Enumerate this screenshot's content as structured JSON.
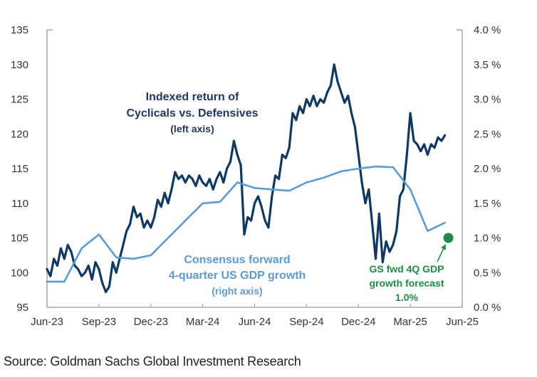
{
  "source": "Source: Goldman Sachs Global Investment Research",
  "colors": {
    "cyclicals": "#0f3864",
    "gdp": "#5b9bd5",
    "forecast": "#1e8c45",
    "axis": "#a6a6a6",
    "tick_text": "#333333"
  },
  "chart_data": {
    "type": "line",
    "title": "",
    "x_unit": "months since Jun-23",
    "x_tick_labels": [
      "Jun-23",
      "Sep-23",
      "Dec-23",
      "Mar-24",
      "Jun-24",
      "Sep-24",
      "Dec-24",
      "Mar-25",
      "Jun-25"
    ],
    "xlim": [
      0,
      24
    ],
    "y_left": {
      "ticks": [
        95,
        100,
        105,
        110,
        115,
        120,
        125,
        130,
        135
      ],
      "tick_labels": [
        "95",
        "100",
        "105",
        "110",
        "115",
        "120",
        "125",
        "130",
        "135"
      ],
      "ylim": [
        95,
        135
      ]
    },
    "y_right": {
      "ticks": [
        0,
        0.5,
        1,
        1.5,
        2,
        2.5,
        3,
        3.5,
        4
      ],
      "tick_labels": [
        "0.0 %",
        "0.5 %",
        "1.0 %",
        "1.5 %",
        "2.0 %",
        "2.5 %",
        "3.0 %",
        "3.5 %",
        "4.0 %"
      ],
      "ylim": [
        0,
        4
      ]
    },
    "grid": false,
    "series": [
      {
        "name": "Indexed return of Cyclicals vs. Defensives",
        "axis": "left",
        "x": [
          0,
          0.2,
          0.4,
          0.6,
          0.8,
          1.0,
          1.2,
          1.4,
          1.6,
          1.8,
          2.0,
          2.2,
          2.4,
          2.6,
          2.8,
          3.0,
          3.2,
          3.4,
          3.6,
          3.8,
          4.0,
          4.2,
          4.4,
          4.6,
          4.8,
          5.0,
          5.2,
          5.4,
          5.6,
          5.8,
          6.0,
          6.2,
          6.4,
          6.6,
          6.8,
          7.0,
          7.2,
          7.4,
          7.6,
          7.8,
          8.0,
          8.2,
          8.4,
          8.6,
          8.8,
          9.0,
          9.2,
          9.4,
          9.6,
          9.8,
          10.0,
          10.2,
          10.4,
          10.6,
          10.8,
          11.0,
          11.2,
          11.4,
          11.6,
          11.8,
          12.0,
          12.2,
          12.4,
          12.6,
          12.8,
          13.0,
          13.2,
          13.4,
          13.6,
          13.8,
          14.0,
          14.2,
          14.4,
          14.6,
          14.8,
          15.0,
          15.2,
          15.4,
          15.6,
          15.8,
          16.0,
          16.2,
          16.4,
          16.6,
          16.8,
          17.0,
          17.2,
          17.4,
          17.6,
          17.8,
          18.0,
          18.2,
          18.4,
          18.6,
          18.8,
          19.0,
          19.2,
          19.4,
          19.6,
          19.8,
          20.0,
          20.2,
          20.4,
          20.6,
          20.8,
          21.0,
          21.2,
          21.4,
          21.6,
          21.8,
          22.0,
          22.2,
          22.4,
          22.6,
          22.8,
          23.0
        ],
        "values": [
          100.5,
          99.5,
          102.0,
          101.0,
          103.5,
          102.0,
          104.0,
          103.0,
          101.0,
          100.5,
          99.5,
          100.0,
          101.0,
          99.0,
          101.5,
          100.5,
          98.5,
          97.2,
          98.0,
          101.5,
          100.0,
          102.0,
          104.0,
          106.0,
          107.0,
          109.5,
          108.0,
          108.5,
          106.5,
          107.5,
          106.5,
          108.0,
          110.5,
          109.5,
          111.5,
          110.0,
          112.0,
          114.5,
          113.5,
          114.0,
          113.0,
          114.0,
          113.5,
          112.5,
          114.0,
          113.0,
          112.5,
          113.5,
          112.0,
          113.5,
          114.5,
          113.0,
          115.0,
          116.0,
          119.0,
          117.0,
          115.5,
          105.5,
          108.0,
          107.5,
          110.0,
          111.0,
          109.5,
          107.5,
          106.5,
          111.0,
          114.0,
          113.5,
          117.0,
          116.5,
          118.0,
          123.0,
          122.0,
          124.0,
          123.0,
          125.0,
          124.0,
          125.5,
          124.0,
          125.0,
          124.5,
          126.0,
          127.0,
          130.0,
          127.5,
          126.0,
          124.5,
          125.5,
          123.0,
          121.0,
          117.0,
          113.0,
          110.0,
          112.0,
          107.0,
          102.0,
          108.5,
          101.5,
          104.5,
          103.0,
          104.0,
          106.0,
          111.0,
          112.0,
          117.0,
          123.0,
          119.0,
          118.5,
          117.5,
          118.5,
          117.0,
          118.5,
          118.0,
          119.5,
          119.0,
          119.8
        ],
        "line_color": "#0f3864"
      },
      {
        "name": "Consensus forward 4-quarter US GDP growth",
        "axis": "right",
        "x": [
          0,
          1,
          2,
          3,
          4,
          5,
          6,
          7,
          8,
          9,
          10,
          11,
          12,
          13,
          14,
          15,
          16,
          17,
          18,
          19,
          20,
          21,
          22,
          23
        ],
        "values": [
          0.37,
          0.37,
          0.85,
          1.05,
          0.72,
          0.7,
          0.75,
          1.0,
          1.25,
          1.5,
          1.52,
          1.8,
          1.72,
          1.7,
          1.68,
          1.8,
          1.87,
          1.96,
          2.0,
          2.03,
          2.02,
          1.7,
          1.1,
          1.22
        ],
        "line_color": "#5b9bd5"
      }
    ],
    "forecast_point": {
      "name": "GS fwd 4Q GDP growth forecast",
      "x": 23.2,
      "value": 1.0,
      "axis": "right",
      "color": "#1e8c45"
    },
    "annotations": [
      {
        "id": "cyclicals-label",
        "lines": [
          "Indexed return of",
          "Cyclicals vs. Defensives",
          "(left axis)"
        ],
        "color": "#1f3864"
      },
      {
        "id": "gdp-label",
        "lines": [
          "Consensus forward",
          "4-quarter US GDP growth",
          "(right axis)"
        ],
        "color": "#5b9bd5"
      },
      {
        "id": "forecast-label",
        "lines": [
          "GS fwd 4Q GDP",
          "growth forecast",
          "1.0%"
        ],
        "color": "#1e8c45"
      }
    ],
    "legend": "none"
  }
}
